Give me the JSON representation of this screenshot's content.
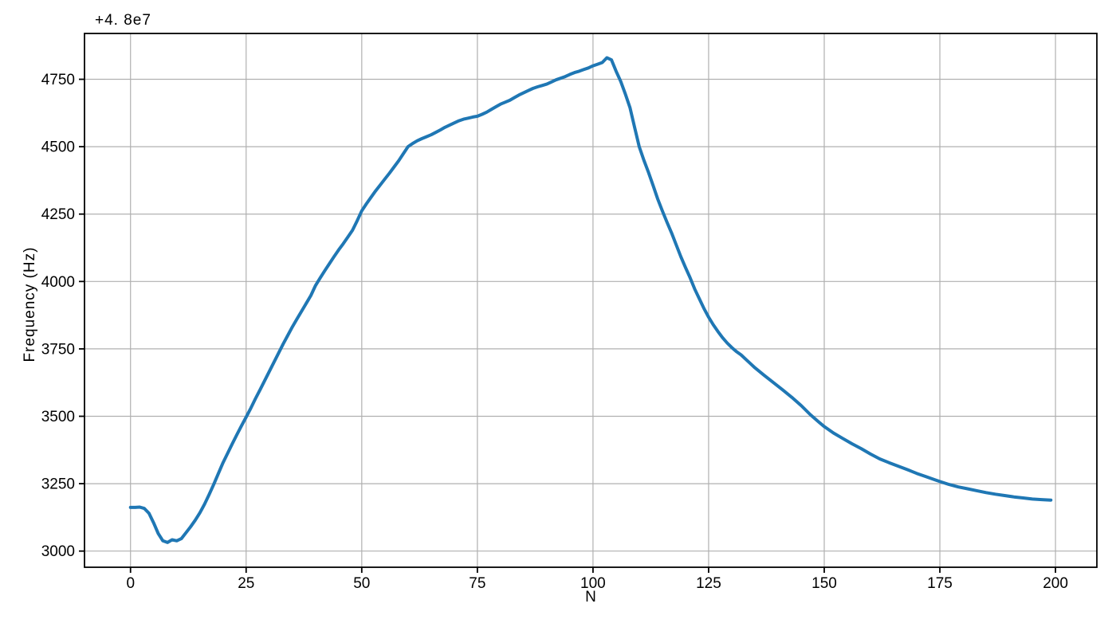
{
  "chart_data": {
    "type": "line",
    "title": "",
    "xlabel": "N",
    "ylabel": "Frequency (Hz)",
    "y_offset_label": "+4. 8e7",
    "y_offset_value": 48000000,
    "xlim": [
      -9.95,
      208.95
    ],
    "ylim": [
      2940,
      4920
    ],
    "x_ticks": [
      0,
      25,
      50,
      75,
      100,
      125,
      150,
      175,
      200
    ],
    "y_ticks": [
      3000,
      3250,
      3500,
      3750,
      4000,
      4250,
      4500,
      4750
    ],
    "grid": true,
    "legend": "none",
    "line_color": "#1f77b4",
    "grid_color": "#b0b0b0",
    "spine_color": "#000000",
    "line_width": 4,
    "series": [
      {
        "name": "frequency",
        "points": [
          [
            0,
            3162
          ],
          [
            1,
            3162
          ],
          [
            2,
            3163
          ],
          [
            3,
            3158
          ],
          [
            4,
            3140
          ],
          [
            5,
            3105
          ],
          [
            6,
            3065
          ],
          [
            7,
            3038
          ],
          [
            8,
            3032
          ],
          [
            9,
            3042
          ],
          [
            10,
            3038
          ],
          [
            11,
            3046
          ],
          [
            12,
            3068
          ],
          [
            13,
            3090
          ],
          [
            14,
            3115
          ],
          [
            15,
            3142
          ],
          [
            16,
            3174
          ],
          [
            17,
            3210
          ],
          [
            18,
            3248
          ],
          [
            19,
            3288
          ],
          [
            20,
            3328
          ],
          [
            21,
            3363
          ],
          [
            22,
            3398
          ],
          [
            23,
            3432
          ],
          [
            24,
            3465
          ],
          [
            25,
            3497
          ],
          [
            26,
            3530
          ],
          [
            27,
            3565
          ],
          [
            28,
            3598
          ],
          [
            29,
            3632
          ],
          [
            30,
            3666
          ],
          [
            31,
            3700
          ],
          [
            32,
            3734
          ],
          [
            33,
            3768
          ],
          [
            34,
            3800
          ],
          [
            35,
            3832
          ],
          [
            36,
            3861
          ],
          [
            37,
            3890
          ],
          [
            38,
            3919
          ],
          [
            39,
            3948
          ],
          [
            40,
            3985
          ],
          [
            41,
            4013
          ],
          [
            42,
            4040
          ],
          [
            43,
            4066
          ],
          [
            44,
            4092
          ],
          [
            45,
            4117
          ],
          [
            46,
            4140
          ],
          [
            47,
            4165
          ],
          [
            48,
            4190
          ],
          [
            49,
            4225
          ],
          [
            50,
            4262
          ],
          [
            51,
            4288
          ],
          [
            52,
            4312
          ],
          [
            53,
            4336
          ],
          [
            54,
            4358
          ],
          [
            55,
            4380
          ],
          [
            56,
            4402
          ],
          [
            57,
            4425
          ],
          [
            58,
            4448
          ],
          [
            59,
            4474
          ],
          [
            60,
            4500
          ],
          [
            61,
            4512
          ],
          [
            62,
            4522
          ],
          [
            63,
            4530
          ],
          [
            64,
            4537
          ],
          [
            65,
            4544
          ],
          [
            66,
            4553
          ],
          [
            67,
            4562
          ],
          [
            68,
            4572
          ],
          [
            69,
            4580
          ],
          [
            70,
            4588
          ],
          [
            71,
            4596
          ],
          [
            72,
            4602
          ],
          [
            73,
            4606
          ],
          [
            74,
            4610
          ],
          [
            75,
            4613
          ],
          [
            76,
            4620
          ],
          [
            77,
            4628
          ],
          [
            78,
            4638
          ],
          [
            79,
            4648
          ],
          [
            80,
            4658
          ],
          [
            81,
            4665
          ],
          [
            82,
            4672
          ],
          [
            83,
            4682
          ],
          [
            84,
            4692
          ],
          [
            85,
            4700
          ],
          [
            86,
            4708
          ],
          [
            87,
            4716
          ],
          [
            88,
            4722
          ],
          [
            89,
            4727
          ],
          [
            90,
            4732
          ],
          [
            91,
            4740
          ],
          [
            92,
            4748
          ],
          [
            93,
            4754
          ],
          [
            94,
            4760
          ],
          [
            95,
            4768
          ],
          [
            96,
            4775
          ],
          [
            97,
            4780
          ],
          [
            98,
            4786
          ],
          [
            99,
            4792
          ],
          [
            100,
            4800
          ],
          [
            101,
            4806
          ],
          [
            102,
            4812
          ],
          [
            103,
            4830
          ],
          [
            104,
            4822
          ],
          [
            105,
            4780
          ],
          [
            106,
            4742
          ],
          [
            107,
            4695
          ],
          [
            108,
            4645
          ],
          [
            109,
            4572
          ],
          [
            110,
            4500
          ],
          [
            111,
            4450
          ],
          [
            112,
            4405
          ],
          [
            113,
            4356
          ],
          [
            114,
            4306
          ],
          [
            115,
            4262
          ],
          [
            116,
            4220
          ],
          [
            117,
            4180
          ],
          [
            118,
            4136
          ],
          [
            119,
            4092
          ],
          [
            120,
            4052
          ],
          [
            121,
            4014
          ],
          [
            122,
            3972
          ],
          [
            123,
            3936
          ],
          [
            124,
            3900
          ],
          [
            125,
            3868
          ],
          [
            126,
            3840
          ],
          [
            127,
            3815
          ],
          [
            128,
            3792
          ],
          [
            129,
            3772
          ],
          [
            130,
            3755
          ],
          [
            131,
            3740
          ],
          [
            132,
            3728
          ],
          [
            133,
            3712
          ],
          [
            134,
            3696
          ],
          [
            135,
            3680
          ],
          [
            137,
            3652
          ],
          [
            139,
            3625
          ],
          [
            141,
            3598
          ],
          [
            143,
            3570
          ],
          [
            145,
            3540
          ],
          [
            147,
            3506
          ],
          [
            149,
            3476
          ],
          [
            150,
            3462
          ],
          [
            152,
            3438
          ],
          [
            154,
            3418
          ],
          [
            156,
            3398
          ],
          [
            158,
            3380
          ],
          [
            160,
            3360
          ],
          [
            162,
            3342
          ],
          [
            164,
            3328
          ],
          [
            166,
            3315
          ],
          [
            168,
            3302
          ],
          [
            170,
            3288
          ],
          [
            172,
            3276
          ],
          [
            174,
            3264
          ],
          [
            175,
            3258
          ],
          [
            177,
            3247
          ],
          [
            179,
            3238
          ],
          [
            181,
            3231
          ],
          [
            183,
            3224
          ],
          [
            185,
            3217
          ],
          [
            187,
            3211
          ],
          [
            189,
            3206
          ],
          [
            191,
            3201
          ],
          [
            193,
            3197
          ],
          [
            195,
            3193
          ],
          [
            197,
            3191
          ],
          [
            199,
            3189
          ]
        ]
      }
    ]
  }
}
